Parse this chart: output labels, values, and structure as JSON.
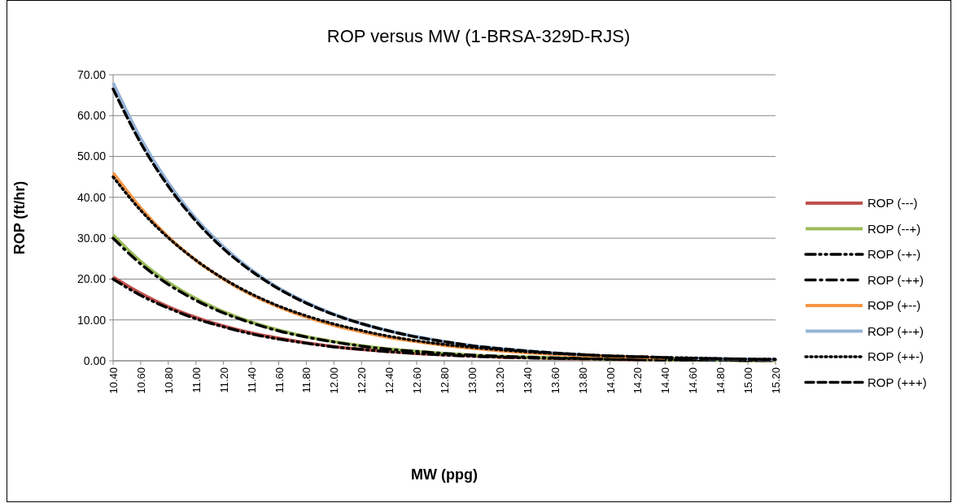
{
  "chart_data": {
    "type": "line",
    "title": "ROP versus MW (1-BRSA-329D-RJS)",
    "xlabel": "MW (ppg)",
    "ylabel": "ROP (ft/hr)",
    "categories": [
      "10.40",
      "10.60",
      "10.80",
      "11.00",
      "11.20",
      "11.40",
      "11.60",
      "11.80",
      "12.00",
      "12.20",
      "12.40",
      "12.60",
      "12.80",
      "13.00",
      "13.20",
      "13.40",
      "13.60",
      "13.80",
      "14.00",
      "14.20",
      "14.40",
      "14.60",
      "14.80",
      "15.00",
      "15.20"
    ],
    "ylim": [
      0,
      70
    ],
    "yticks": [
      {
        "value": 0,
        "label": "0.00"
      },
      {
        "value": 10,
        "label": "10.00"
      },
      {
        "value": 20,
        "label": "20.00"
      },
      {
        "value": 30,
        "label": "30.00"
      },
      {
        "value": 40,
        "label": "40.00"
      },
      {
        "value": 50,
        "label": "50.00"
      },
      {
        "value": 60,
        "label": "60.00"
      },
      {
        "value": 70,
        "label": "70.00"
      }
    ],
    "grid": "y",
    "legend": "right",
    "series": [
      {
        "name": "ROP (---)",
        "color": "#c0504d",
        "line_style": "solid",
        "values": [
          20.5,
          16.5,
          13.2,
          10.6,
          8.5,
          6.8,
          5.5,
          4.4,
          3.5,
          2.8,
          2.3,
          1.8,
          1.5,
          1.2,
          0.9,
          0.8,
          0.6,
          0.5,
          0.4,
          0.3,
          0.3,
          0.2,
          0.2,
          0.1,
          0.1
        ]
      },
      {
        "name": "ROP (--+)",
        "color": "#9bbb59",
        "line_style": "solid",
        "values": [
          30.8,
          24.3,
          19.2,
          15.2,
          12.0,
          9.5,
          7.5,
          5.9,
          4.7,
          3.7,
          2.9,
          2.3,
          1.8,
          1.4,
          1.1,
          0.9,
          0.7,
          0.6,
          0.4,
          0.4,
          0.3,
          0.2,
          0.2,
          0.1,
          0.1
        ]
      },
      {
        "name": "ROP (-+-)",
        "color": "#000000",
        "line_style": "dashdotdot",
        "values": [
          20.0,
          16.0,
          12.9,
          10.3,
          8.3,
          6.6,
          5.3,
          4.3,
          3.4,
          2.8,
          2.2,
          1.8,
          1.4,
          1.1,
          0.9,
          0.7,
          0.6,
          0.5,
          0.4,
          0.3,
          0.2,
          0.2,
          0.2,
          0.1,
          0.1
        ]
      },
      {
        "name": "ROP (-++)",
        "color": "#000000",
        "line_style": "dashdot",
        "values": [
          30.0,
          23.7,
          18.7,
          14.8,
          11.7,
          9.3,
          7.3,
          5.8,
          4.6,
          3.6,
          2.8,
          2.3,
          1.8,
          1.4,
          1.1,
          0.9,
          0.7,
          0.6,
          0.4,
          0.3,
          0.3,
          0.2,
          0.2,
          0.1,
          0.1
        ]
      },
      {
        "name": "ROP (+--)",
        "color": "#f79646",
        "line_style": "solid",
        "values": [
          46.0,
          37.4,
          30.3,
          24.6,
          20.0,
          16.2,
          13.2,
          10.7,
          8.7,
          7.1,
          5.7,
          4.7,
          3.8,
          3.1,
          2.5,
          2.0,
          1.6,
          1.3,
          1.1,
          0.9,
          0.7,
          null,
          null,
          null,
          null
        ]
      },
      {
        "name": "ROP (+-+)",
        "color": "#95b3d7",
        "line_style": "solid",
        "values": [
          68.0,
          54.4,
          43.5,
          34.8,
          27.9,
          22.3,
          17.8,
          14.3,
          11.4,
          9.1,
          7.3,
          5.9,
          4.7,
          3.7,
          3.0,
          2.4,
          1.9,
          1.5,
          null,
          null,
          null,
          0.6,
          0.5,
          0.4,
          0.3
        ]
      },
      {
        "name": "ROP (++-)",
        "color": "#000000",
        "line_style": "dotted",
        "values": [
          45.0,
          36.8,
          30.1,
          24.6,
          20.1,
          16.4,
          13.4,
          11.0,
          9.0,
          7.4,
          6.0,
          4.9,
          4.0,
          3.3,
          2.7,
          2.2,
          1.8,
          1.5,
          1.2,
          1.0,
          0.8,
          0.7,
          0.5,
          0.4,
          0.4
        ]
      },
      {
        "name": "ROP (+++)",
        "color": "#000000",
        "line_style": "dashed",
        "values": [
          66.5,
          53.3,
          42.7,
          34.2,
          27.4,
          22.0,
          17.6,
          14.1,
          11.3,
          9.1,
          7.3,
          5.8,
          4.7,
          3.7,
          3.0,
          2.4,
          1.9,
          1.5,
          1.2,
          1.0,
          0.8,
          0.6,
          0.5,
          0.4,
          0.3
        ]
      }
    ]
  }
}
